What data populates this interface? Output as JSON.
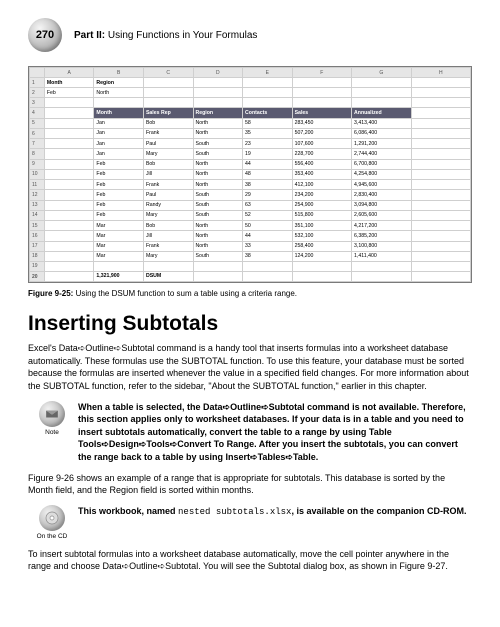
{
  "page_number": "270",
  "part_label": "Part II:",
  "part_title": "Using Functions in Your Formulas",
  "sheet": {
    "col_letters": [
      "",
      "A",
      "B",
      "C",
      "D",
      "E",
      "F",
      "G",
      "H"
    ],
    "criteria_headers_row": "1",
    "criteria_header_labels": [
      "Month",
      "Region"
    ],
    "criteria_values_row": "2",
    "criteria_values": [
      "Feb",
      "North"
    ],
    "blank_row": "3",
    "data_header_row": "4",
    "data_headers": [
      "Month",
      "Sales Rep",
      "Region",
      "Contacts",
      "Sales",
      "Annualized"
    ],
    "rows": [
      {
        "n": "5",
        "c": [
          "Jan",
          "Bob",
          "North",
          "58",
          "283,450",
          "3,413,400"
        ]
      },
      {
        "n": "6",
        "c": [
          "Jan",
          "Frank",
          "North",
          "35",
          "507,200",
          "6,086,400"
        ]
      },
      {
        "n": "7",
        "c": [
          "Jan",
          "Paul",
          "South",
          "23",
          "107,600",
          "1,291,200"
        ]
      },
      {
        "n": "8",
        "c": [
          "Jan",
          "Mary",
          "South",
          "19",
          "228,700",
          "2,744,400"
        ]
      },
      {
        "n": "9",
        "c": [
          "Feb",
          "Bob",
          "North",
          "44",
          "556,400",
          "6,700,800"
        ]
      },
      {
        "n": "10",
        "c": [
          "Feb",
          "Jill",
          "North",
          "48",
          "353,400",
          "4,254,800"
        ]
      },
      {
        "n": "11",
        "c": [
          "Feb",
          "Frank",
          "North",
          "38",
          "412,100",
          "4,945,600"
        ]
      },
      {
        "n": "12",
        "c": [
          "Feb",
          "Paul",
          "South",
          "29",
          "234,200",
          "2,830,400"
        ]
      },
      {
        "n": "13",
        "c": [
          "Feb",
          "Randy",
          "South",
          "63",
          "254,900",
          "3,094,800"
        ]
      },
      {
        "n": "14",
        "c": [
          "Feb",
          "Mary",
          "South",
          "52",
          "515,800",
          "2,605,600"
        ]
      },
      {
        "n": "15",
        "c": [
          "Mar",
          "Bob",
          "North",
          "50",
          "351,100",
          "4,217,200"
        ]
      },
      {
        "n": "16",
        "c": [
          "Mar",
          "Jill",
          "North",
          "44",
          "532,100",
          "6,385,200"
        ]
      },
      {
        "n": "17",
        "c": [
          "Mar",
          "Frank",
          "North",
          "33",
          "258,400",
          "3,100,800"
        ]
      },
      {
        "n": "18",
        "c": [
          "Mar",
          "Mary",
          "South",
          "38",
          "124,200",
          "1,411,400"
        ]
      }
    ],
    "blank_after": "19",
    "dsum_row": "20",
    "dsum_value": "1,321,900",
    "dsum_label": "DSUM"
  },
  "caption_label": "Figure 9-25:",
  "caption_text": "Using the DSUM function to sum a table using a criteria range.",
  "section_heading": "Inserting Subtotals",
  "body1": "Excel's Data➪Outline➪Subtotal command is a handy tool that inserts formulas into a worksheet database automatically. These formulas use the SUBTOTAL function. To use this feature, your database must be sorted because the formulas are inserted whenever the value in a specified field changes. For more information about the SUBTOTAL function, refer to the sidebar, \"About the SUBTOTAL function,\" earlier in this chapter.",
  "note_label": "Note",
  "note_text": "When a table is selected, the Data➪Outline➪Subtotal command is not available. Therefore, this section applies only to worksheet databases. If your data is in a table and you need to insert subtotals automatically, convert the table to a range by using Table Tools➪Design➪Tools➪Convert To Range. After you insert the subtotals, you can convert the range back to a table by using Insert➪Tables➪Table.",
  "body2": "Figure 9-26 shows an example of a range that is appropriate for subtotals. This database is sorted by the Month field, and the Region field is sorted within months.",
  "cd_label": "On the CD",
  "cd_text_pre": "This workbook, named ",
  "cd_filename": "nested subtotals.xlsx",
  "cd_text_post": ", is available on the companion CD-ROM.",
  "body3": "To insert subtotal formulas into a worksheet database automatically, move the cell pointer anywhere in the range and choose Data➪Outline➪Subtotal. You will see the Subtotal dialog box, as shown in Figure 9-27."
}
